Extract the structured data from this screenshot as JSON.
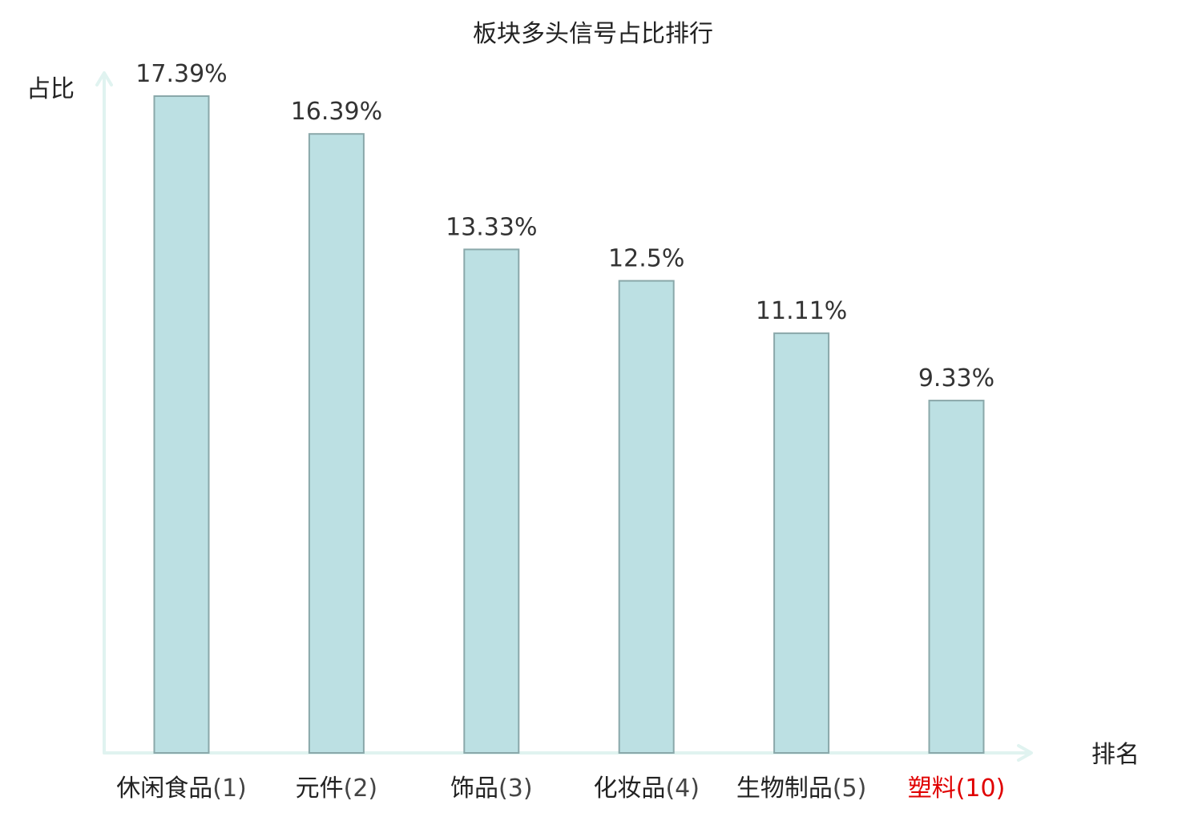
{
  "chart_data": {
    "type": "bar",
    "title": "板块多头信号占比排行",
    "xlabel": "排名",
    "ylabel": "占比",
    "ylim": [
      0,
      18.5
    ],
    "grid": false,
    "categories": [
      {
        "name": "休闲食品",
        "rank": "(1)",
        "highlight": false
      },
      {
        "name": "元件",
        "rank": "(2)",
        "highlight": false
      },
      {
        "name": "饰品",
        "rank": "(3)",
        "highlight": false
      },
      {
        "name": "化妆品",
        "rank": "(4)",
        "highlight": false
      },
      {
        "name": "生物制品",
        "rank": "(5)",
        "highlight": false
      },
      {
        "name": "塑料",
        "rank": "(10)",
        "highlight": true
      }
    ],
    "values": [
      17.39,
      16.39,
      13.33,
      12.5,
      11.11,
      9.33
    ],
    "value_labels": [
      "17.39%",
      "16.39%",
      "13.33%",
      "12.5%",
      "11.11%",
      "9.33%"
    ],
    "colors": {
      "bar_fill": "#bce0e3",
      "bar_stroke": "#8aa8aa",
      "axis": "#e0f3f0",
      "highlight_text": "#e00000"
    }
  }
}
